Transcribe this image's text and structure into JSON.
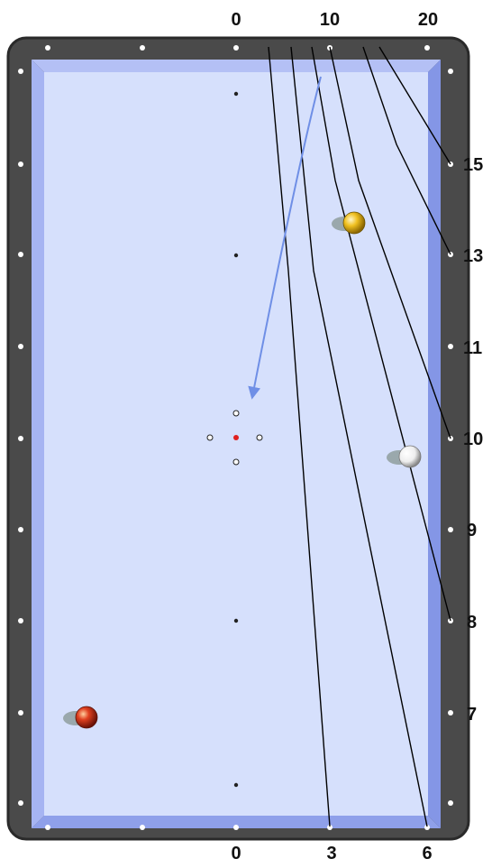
{
  "diagram": {
    "top_labels": [
      "0",
      "10",
      "20"
    ],
    "right_labels": [
      "15",
      "13",
      "11",
      "10",
      "9",
      "8",
      "7"
    ],
    "bottom_labels": [
      "0",
      "3",
      "6"
    ]
  },
  "colors": {
    "rail": "#4a4a4a",
    "rail_edge": "#2a2a2a",
    "cushion": "#9aaaf0",
    "cushion_light": "#c3ccf7",
    "cushion_dark": "#7d8fe4",
    "cloth": "#d6e0fc",
    "diamond": "#ffffff",
    "system_line": "#000000",
    "path_arrow": "#6f8fe6",
    "center_spot": "#e02020",
    "yellow_ball": "#f0c020",
    "white_ball": "#f4f4f4",
    "red_ball": "#d83a1e"
  },
  "icons": {
    "object_ball": "yellow-ball-icon",
    "cue_ball": "white-cue-ball-icon",
    "red_ball": "red-ball-icon"
  }
}
